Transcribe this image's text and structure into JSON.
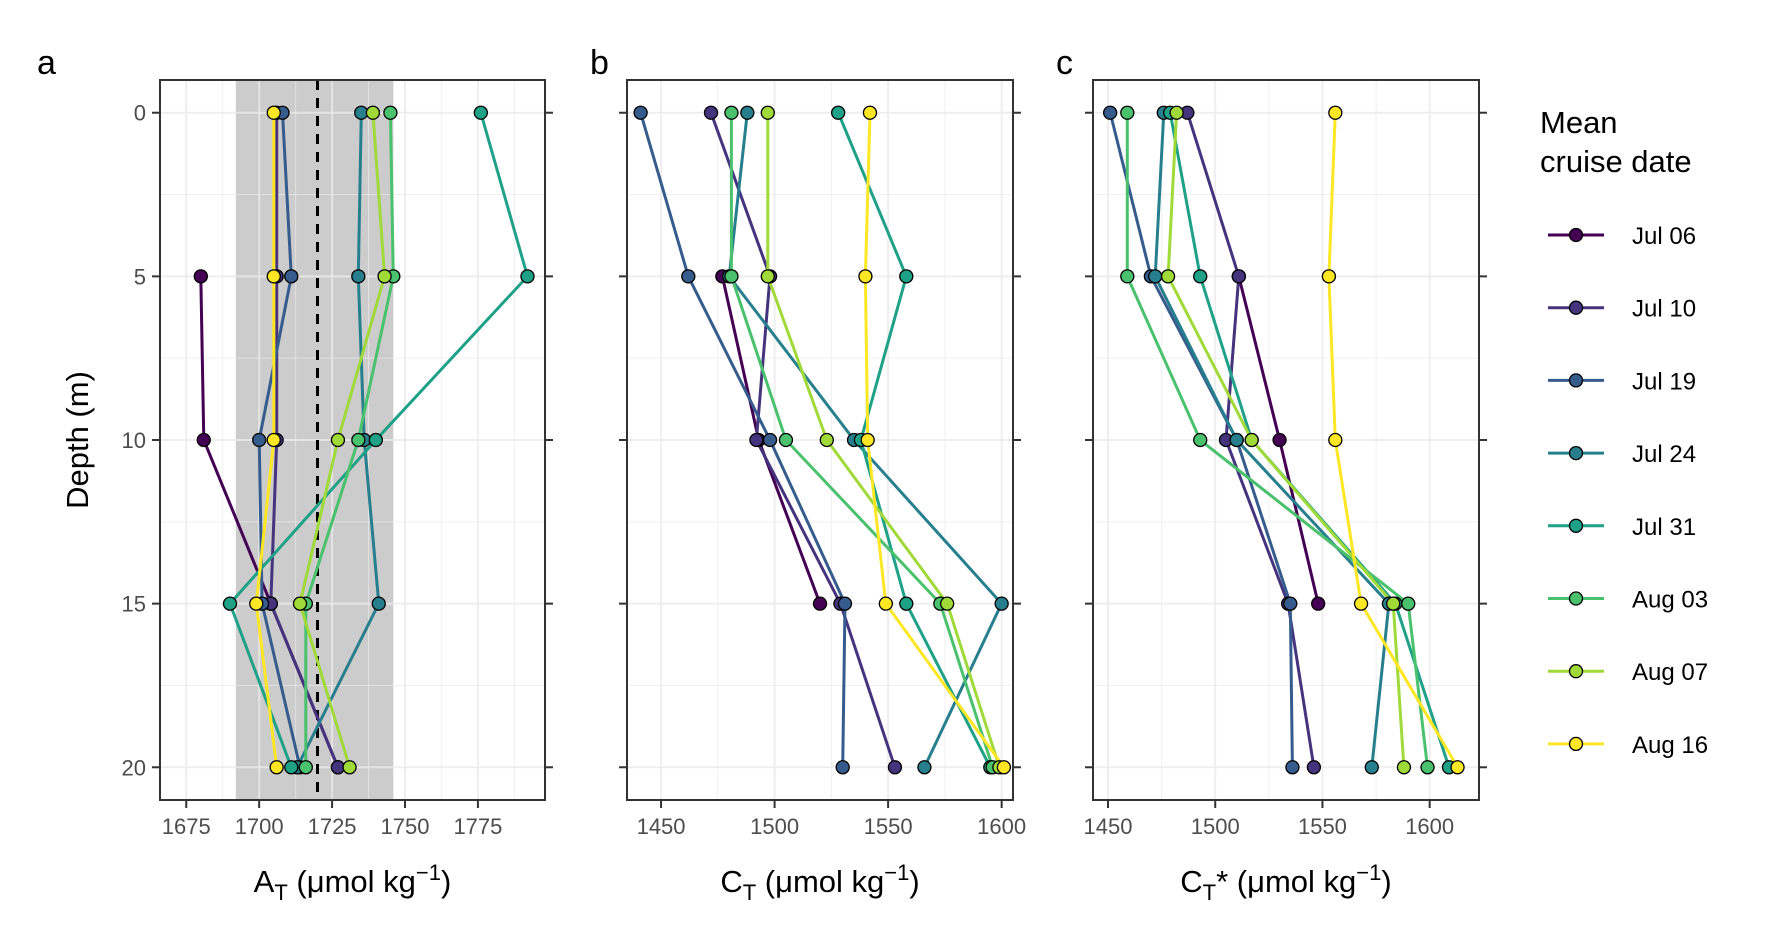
{
  "chart_data": [
    {
      "type": "line",
      "panel_label": "a",
      "xlabel_main": "A",
      "xlabel_sub": "T",
      "xlabel_star": "",
      "xlabel_unit": " (μmol kg",
      "xlabel_sup": "−1",
      "xlabel_close": ")",
      "ylabel": "Depth (m)",
      "xlim": [
        1666,
        1798
      ],
      "ylim": [
        21,
        -1
      ],
      "y_reversed": true,
      "x_ticks": [
        1675,
        1700,
        1725,
        1750,
        1775
      ],
      "y_ticks": [
        0,
        5,
        10,
        15,
        20
      ],
      "shaded_band_x": [
        1692,
        1746
      ],
      "dashed_line_x": 1720,
      "grid": true,
      "depths": [
        0,
        5,
        10,
        15,
        20
      ],
      "series": [
        {
          "name": "Jul 06",
          "color": "#440154",
          "x": [
            null,
            1680,
            1681,
            1704,
            1727
          ]
        },
        {
          "name": "Jul 10",
          "color": "#46337E",
          "x": [
            1706,
            1706,
            1706,
            1704,
            1727
          ]
        },
        {
          "name": "Jul 19",
          "color": "#365C8D",
          "x": [
            1708,
            1711,
            1700,
            1701,
            1714
          ]
        },
        {
          "name": "Jul 24",
          "color": "#277F8E",
          "x": [
            1735,
            1734,
            1736,
            1741,
            1713
          ]
        },
        {
          "name": "Jul 31",
          "color": "#1FA187",
          "x": [
            1776,
            1792,
            1740,
            1690,
            1711
          ]
        },
        {
          "name": "Aug 03",
          "color": "#4AC16D",
          "x": [
            1745,
            1746,
            1734,
            1716,
            1716
          ]
        },
        {
          "name": "Aug 07",
          "color": "#A0DA39",
          "x": [
            1739,
            1743,
            1727,
            1714,
            1731
          ]
        },
        {
          "name": "Aug 16",
          "color": "#FDE725",
          "x": [
            1705,
            1705,
            1705,
            1699,
            1706
          ]
        }
      ]
    },
    {
      "type": "line",
      "panel_label": "b",
      "xlabel_main": "C",
      "xlabel_sub": "T",
      "xlabel_star": "",
      "xlabel_unit": " (μmol kg",
      "xlabel_sup": "−1",
      "xlabel_close": ")",
      "xlim": [
        1435,
        1605
      ],
      "ylim": [
        21,
        -1
      ],
      "y_reversed": true,
      "x_ticks": [
        1450,
        1500,
        1550,
        1600
      ],
      "y_ticks": [
        0,
        5,
        10,
        15,
        20
      ],
      "grid": true,
      "depths": [
        0,
        5,
        10,
        15,
        20
      ],
      "series": [
        {
          "name": "Jul 06",
          "color": "#440154",
          "x": [
            null,
            1477,
            1493,
            1520,
            null
          ]
        },
        {
          "name": "Jul 10",
          "color": "#46337E",
          "x": [
            1472,
            1498,
            1492,
            1529,
            1553
          ]
        },
        {
          "name": "Jul 19",
          "color": "#365C8D",
          "x": [
            1441,
            1462,
            1498,
            1531,
            1530
          ]
        },
        {
          "name": "Jul 24",
          "color": "#277F8E",
          "x": [
            1488,
            1480,
            1535,
            1600,
            1566
          ]
        },
        {
          "name": "Jul 31",
          "color": "#1FA187",
          "x": [
            1528,
            1558,
            1538,
            1558,
            1595
          ]
        },
        {
          "name": "Aug 03",
          "color": "#4AC16D",
          "x": [
            1481,
            1481,
            1505,
            1573,
            1596
          ]
        },
        {
          "name": "Aug 07",
          "color": "#A0DA39",
          "x": [
            1497,
            1497,
            1523,
            1576,
            1599
          ]
        },
        {
          "name": "Aug 16",
          "color": "#FDE725",
          "x": [
            1542,
            1540,
            1541,
            1549,
            1601
          ]
        }
      ]
    },
    {
      "type": "line",
      "panel_label": "c",
      "xlabel_main": "C",
      "xlabel_sub": "T",
      "xlabel_star": "*",
      "xlabel_unit": " (μmol kg",
      "xlabel_sup": "−1",
      "xlabel_close": ")",
      "xlim": [
        1443,
        1623
      ],
      "ylim": [
        21,
        -1
      ],
      "y_reversed": true,
      "x_ticks": [
        1450,
        1500,
        1550,
        1600
      ],
      "y_ticks": [
        0,
        5,
        10,
        15,
        20
      ],
      "grid": true,
      "depths": [
        0,
        5,
        10,
        15,
        20
      ],
      "series": [
        {
          "name": "Jul 06",
          "color": "#440154",
          "x": [
            null,
            1511,
            1530,
            1548,
            null
          ]
        },
        {
          "name": "Jul 10",
          "color": "#46337E",
          "x": [
            1487,
            1511,
            1505,
            1534,
            1546
          ]
        },
        {
          "name": "Jul 19",
          "color": "#365C8D",
          "x": [
            1451,
            1470,
            1510,
            1535,
            1536
          ]
        },
        {
          "name": "Jul 24",
          "color": "#277F8E",
          "x": [
            1476,
            1472,
            1510,
            1581,
            1573
          ]
        },
        {
          "name": "Jul 31",
          "color": "#1FA187",
          "x": [
            1479,
            1493,
            1517,
            1584,
            1609
          ]
        },
        {
          "name": "Aug 03",
          "color": "#4AC16D",
          "x": [
            1459,
            1459,
            1493,
            1590,
            1599
          ]
        },
        {
          "name": "Aug 07",
          "color": "#A0DA39",
          "x": [
            1482,
            1478,
            1517,
            1583,
            1588
          ]
        },
        {
          "name": "Aug 16",
          "color": "#FDE725",
          "x": [
            1556,
            1553,
            1556,
            1568,
            1613
          ]
        }
      ]
    }
  ],
  "legend": {
    "title_line1": "Mean",
    "title_line2": "cruise date",
    "placement": "right"
  }
}
